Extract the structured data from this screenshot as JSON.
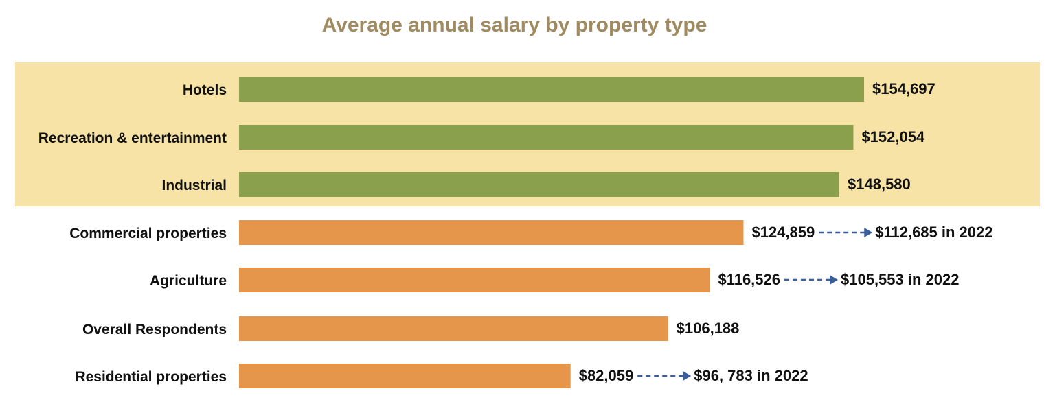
{
  "chart_data": {
    "type": "bar",
    "orientation": "horizontal",
    "title": "Average annual salary by property type",
    "categories": [
      "Hotels",
      "Recreation & entertainment",
      "Industrial",
      "Commercial properties",
      "Agriculture",
      "Overall Respondents",
      "Residential properties"
    ],
    "values": [
      154697,
      152054,
      148580,
      124859,
      116526,
      106188,
      82059
    ],
    "value_labels": [
      "$154,697",
      "$152,054",
      "$148,580",
      "$124,859",
      "$116,526",
      "$106,188",
      "$82,059"
    ],
    "comparisons": [
      null,
      null,
      null,
      "$112,685 in 2022",
      "$105,553 in 2022",
      null,
      "$96, 783 in 2022"
    ],
    "highlighted_categories": [
      "Hotels",
      "Recreation & entertainment",
      "Industrial"
    ],
    "xlim": [
      0,
      154697
    ],
    "grid": false,
    "legend": "none",
    "colors": {
      "title": "#a08a5f",
      "highlight_band": "#f8e3a6",
      "highlight_bar": "#8ba04c",
      "normal_bar": "#e6964a",
      "arrow": "#3b5e9b",
      "text": "#111111"
    }
  }
}
